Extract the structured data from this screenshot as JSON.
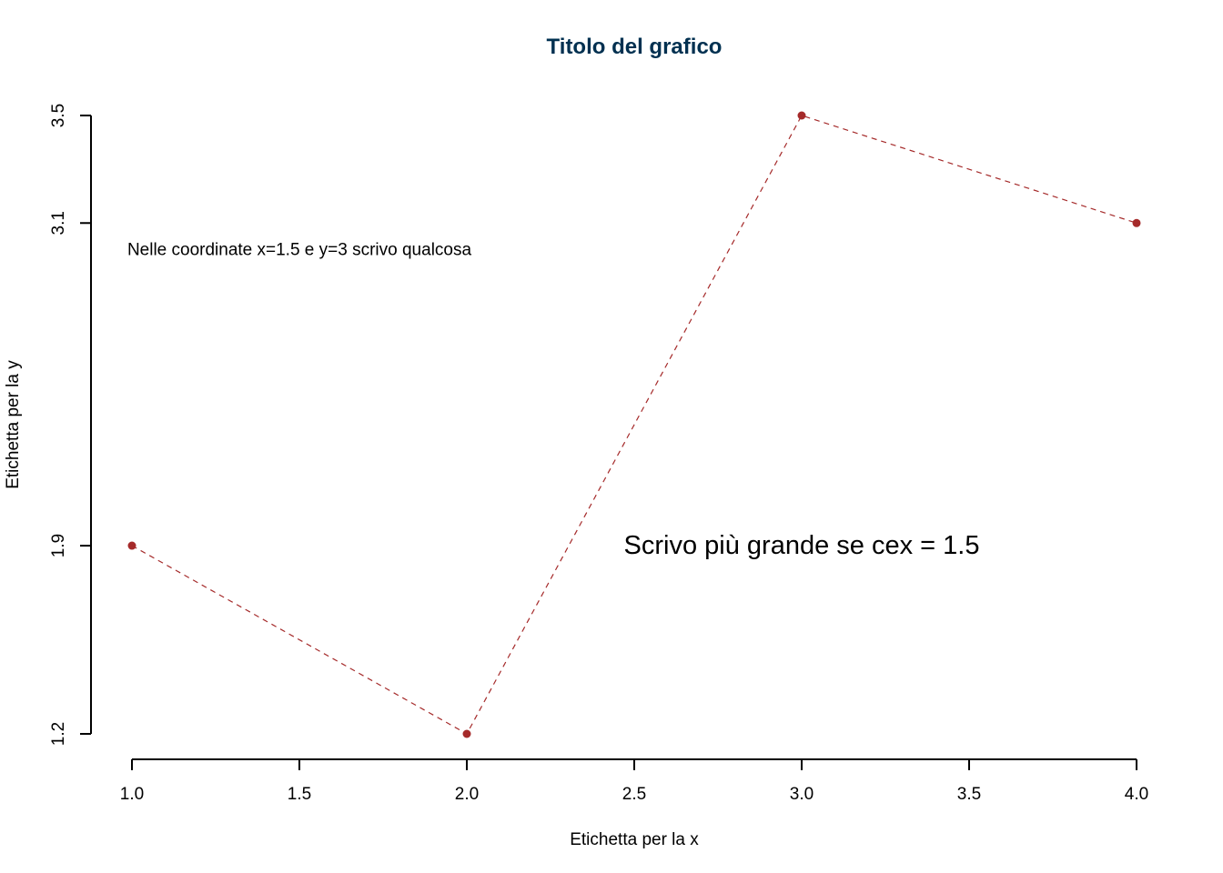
{
  "chart_data": {
    "type": "line",
    "title": "Titolo del grafico",
    "xlabel": "Etichetta per la x",
    "ylabel": "Etichetta per la y",
    "x": [
      1,
      2,
      3,
      4
    ],
    "y": [
      1.9,
      1.2,
      3.5,
      3.1
    ],
    "xlim": [
      1,
      4
    ],
    "ylim": [
      1.2,
      3.5
    ],
    "x_ticks": [
      "1.0",
      "1.5",
      "2.0",
      "2.5",
      "3.0",
      "3.5",
      "4.0"
    ],
    "x_tick_values": [
      1.0,
      1.5,
      2.0,
      2.5,
      3.0,
      3.5,
      4.0
    ],
    "y_ticks": [
      "1.2",
      "1.9",
      "3.1",
      "3.5"
    ],
    "y_tick_values": [
      1.2,
      1.9,
      3.1,
      3.5
    ],
    "line_style": "dashed",
    "grid": false,
    "annotations": [
      {
        "text": "Nelle coordinate x=1.5 e y=3 scrivo qualcosa",
        "x": 1.5,
        "y": 3,
        "size": "small"
      },
      {
        "text": "Scrivo più grande se cex = 1.5",
        "x": 3.0,
        "y": 1.9,
        "size": "large"
      }
    ],
    "colors": {
      "series": "#a52a2a",
      "title": "#003050",
      "axis": "#000000"
    }
  }
}
